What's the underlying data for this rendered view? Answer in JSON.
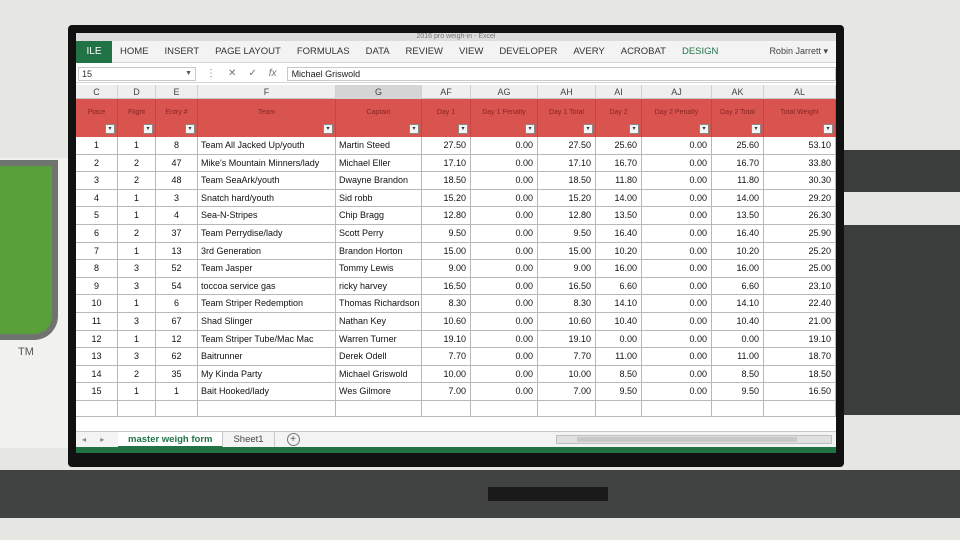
{
  "app": {
    "title": "2016 pro weigh-in - Excel",
    "user": "Robin Jarrett"
  },
  "ribbon": {
    "file": "ILE",
    "tabs": [
      "HOME",
      "INSERT",
      "PAGE LAYOUT",
      "FORMULAS",
      "DATA",
      "REVIEW",
      "VIEW",
      "DEVELOPER",
      "AVERY",
      "ACROBAT",
      "DESIGN"
    ]
  },
  "formula_bar": {
    "name_box": "15",
    "formula": "Michael Griswold"
  },
  "columns": [
    "C",
    "D",
    "E",
    "F",
    "G",
    "AF",
    "AG",
    "AH",
    "AI",
    "AJ",
    "AK",
    "AL"
  ],
  "header_labels": [
    "Place",
    "Flight",
    "Entry #",
    "Team",
    "Captain",
    "Day 1",
    "Day 1 Penalty",
    "Day 1 Total",
    "Day 2",
    "Day 2 Penalty",
    "Day 2 Total",
    "Total Weight"
  ],
  "rows": [
    [
      "1",
      "1",
      "8",
      "Team All Jacked Up/youth",
      "Martin Steed",
      "27.50",
      "0.00",
      "27.50",
      "25.60",
      "0.00",
      "25.60",
      "53.10"
    ],
    [
      "2",
      "2",
      "47",
      "Mike's Mountain Minners/lady",
      "Michael Eller",
      "17.10",
      "0.00",
      "17.10",
      "16.70",
      "0.00",
      "16.70",
      "33.80"
    ],
    [
      "3",
      "2",
      "48",
      "Team SeaArk/youth",
      "Dwayne Brandon",
      "18.50",
      "0.00",
      "18.50",
      "11.80",
      "0.00",
      "11.80",
      "30.30"
    ],
    [
      "4",
      "1",
      "3",
      "Snatch hard/youth",
      "Sid robb",
      "15.20",
      "0.00",
      "15.20",
      "14.00",
      "0.00",
      "14.00",
      "29.20"
    ],
    [
      "5",
      "1",
      "4",
      "Sea-N-Stripes",
      "Chip Bragg",
      "12.80",
      "0.00",
      "12.80",
      "13.50",
      "0.00",
      "13.50",
      "26.30"
    ],
    [
      "6",
      "2",
      "37",
      "Team Perrydise/lady",
      "Scott Perry",
      "9.50",
      "0.00",
      "9.50",
      "16.40",
      "0.00",
      "16.40",
      "25.90"
    ],
    [
      "7",
      "1",
      "13",
      "3rd Generation",
      "Brandon Horton",
      "15.00",
      "0.00",
      "15.00",
      "10.20",
      "0.00",
      "10.20",
      "25.20"
    ],
    [
      "8",
      "3",
      "52",
      "Team Jasper",
      "Tommy Lewis",
      "9.00",
      "0.00",
      "9.00",
      "16.00",
      "0.00",
      "16.00",
      "25.00"
    ],
    [
      "9",
      "3",
      "54",
      "toccoa service gas",
      "ricky harvey",
      "16.50",
      "0.00",
      "16.50",
      "6.60",
      "0.00",
      "6.60",
      "23.10"
    ],
    [
      "10",
      "1",
      "6",
      "Team Striper Redemption",
      "Thomas Richardson",
      "8.30",
      "0.00",
      "8.30",
      "14.10",
      "0.00",
      "14.10",
      "22.40"
    ],
    [
      "11",
      "3",
      "67",
      "Shad Slinger",
      "Nathan Key",
      "10.60",
      "0.00",
      "10.60",
      "10.40",
      "0.00",
      "10.40",
      "21.00"
    ],
    [
      "12",
      "1",
      "12",
      "Team Striper Tube/Mac Mac",
      "Warren Turner",
      "19.10",
      "0.00",
      "19.10",
      "0.00",
      "0.00",
      "0.00",
      "19.10"
    ],
    [
      "13",
      "3",
      "62",
      "Baitrunner",
      "Derek Odell",
      "7.70",
      "0.00",
      "7.70",
      "11.00",
      "0.00",
      "11.00",
      "18.70"
    ],
    [
      "14",
      "2",
      "35",
      "My Kinda Party",
      "Michael Griswold",
      "10.00",
      "0.00",
      "10.00",
      "8.50",
      "0.00",
      "8.50",
      "18.50"
    ],
    [
      "15",
      "1",
      "1",
      "Bait Hooked/lady",
      "Wes Gilmore",
      "7.00",
      "0.00",
      "7.00",
      "9.50",
      "0.00",
      "9.50",
      "16.50"
    ]
  ],
  "sheet_tabs": [
    "master weigh form",
    "Sheet1"
  ],
  "wall": {
    "trademark": "TM"
  },
  "colors": {
    "header_red": "#d9534f",
    "excel_green": "#217346"
  }
}
